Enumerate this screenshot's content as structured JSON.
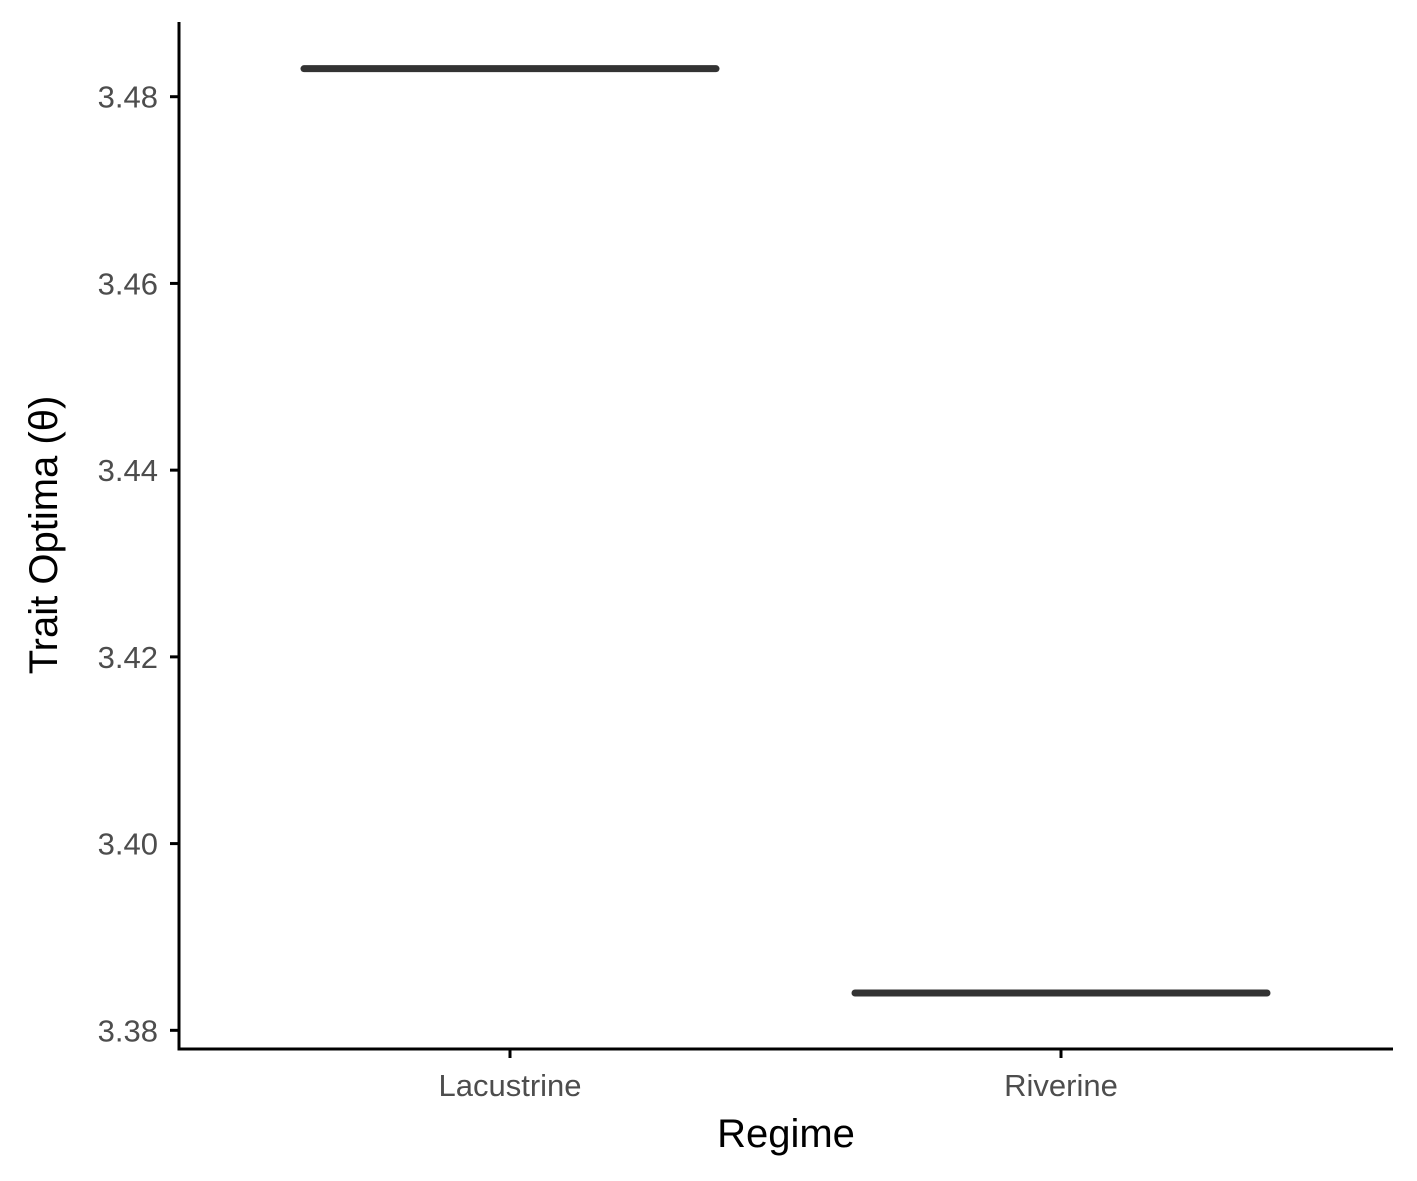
{
  "chart_data": {
    "type": "crossbar",
    "xlabel": "Regime",
    "ylabel": "Trait Optima (θ)",
    "categories": [
      "Lacustrine",
      "Riverine"
    ],
    "values": [
      3.483,
      3.384
    ],
    "ylim": [
      3.378,
      3.488
    ],
    "yticks": [
      3.38,
      3.4,
      3.42,
      3.44,
      3.46,
      3.48
    ],
    "ytick_labels": [
      "3.38",
      "3.40",
      "3.42",
      "3.44",
      "3.46",
      "3.48"
    ],
    "grid": false,
    "legend": "none",
    "colors": {
      "mark": "#333333",
      "axis": "#000000",
      "tick_text": "#4d4d4d",
      "background": "#ffffff"
    }
  }
}
